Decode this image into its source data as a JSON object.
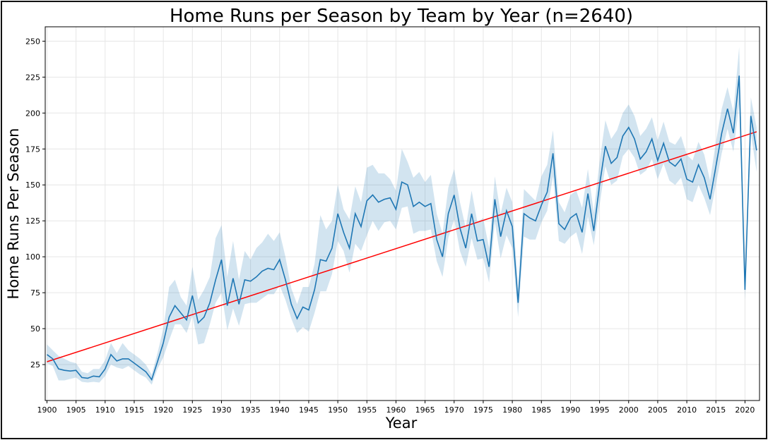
{
  "chart_data": {
    "type": "line",
    "title": "Home Runs per Season by Team by Year (n=2640)",
    "xlabel": "Year",
    "ylabel": "Home Runs Per Season",
    "xlim": [
      1899.7,
      2022.5
    ],
    "ylim": [
      0,
      260
    ],
    "grid": true,
    "x_ticks": [
      1900,
      1905,
      1910,
      1915,
      1920,
      1925,
      1930,
      1935,
      1940,
      1945,
      1950,
      1955,
      1960,
      1965,
      1970,
      1975,
      1980,
      1985,
      1990,
      1995,
      2000,
      2005,
      2010,
      2015,
      2020
    ],
    "y_ticks": [
      25,
      50,
      75,
      100,
      125,
      150,
      175,
      200,
      225,
      250
    ],
    "colors": {
      "series": "#1f77b4",
      "band": "#1f77b4",
      "trend": "#ff0000"
    },
    "series": [
      {
        "type": "line",
        "x": [
          1900,
          1901,
          1902,
          1903,
          1904,
          1905,
          1906,
          1907,
          1908,
          1909,
          1910,
          1911,
          1912,
          1913,
          1914,
          1915,
          1916,
          1917,
          1918,
          1919,
          1920,
          1921,
          1922,
          1923,
          1924,
          1925,
          1926,
          1927,
          1928,
          1929,
          1930,
          1931,
          1932,
          1933,
          1934,
          1935,
          1936,
          1937,
          1938,
          1939,
          1940,
          1941,
          1942,
          1943,
          1944,
          1945,
          1946,
          1947,
          1948,
          1949,
          1950,
          1951,
          1952,
          1953,
          1954,
          1955,
          1956,
          1957,
          1958,
          1959,
          1960,
          1961,
          1962,
          1963,
          1964,
          1965,
          1966,
          1967,
          1968,
          1969,
          1970,
          1971,
          1972,
          1973,
          1974,
          1975,
          1976,
          1977,
          1978,
          1979,
          1980,
          1981,
          1982,
          1983,
          1984,
          1985,
          1986,
          1987,
          1988,
          1989,
          1990,
          1991,
          1992,
          1993,
          1994,
          1995,
          1996,
          1997,
          1998,
          1999,
          2000,
          2001,
          2002,
          2003,
          2004,
          2005,
          2006,
          2007,
          2008,
          2009,
          2010,
          2011,
          2012,
          2013,
          2014,
          2015,
          2016,
          2017,
          2018,
          2019,
          2020,
          2021,
          2022
        ],
        "y": [
          32,
          29,
          22,
          21,
          20.5,
          21,
          16,
          15.5,
          17,
          16.5,
          22,
          32,
          27.5,
          29,
          29,
          26,
          23,
          20,
          14.5,
          27,
          40,
          58,
          66,
          61,
          56,
          73,
          54,
          58,
          68,
          84,
          98,
          66,
          85,
          67,
          84,
          83,
          86,
          90,
          92,
          91,
          98,
          84,
          67,
          57,
          65,
          63,
          77,
          98,
          97,
          106,
          130,
          117,
          106,
          130,
          121,
          139,
          143,
          138,
          140,
          141,
          133,
          152,
          150,
          135,
          138,
          135,
          137,
          112,
          100,
          130,
          143,
          120,
          106,
          130,
          111,
          112,
          93,
          140,
          114,
          132,
          121,
          68,
          130,
          127,
          125,
          136,
          145,
          172,
          123,
          119,
          127,
          130,
          117,
          144,
          118,
          150,
          177,
          165,
          169,
          184,
          190,
          182,
          168,
          173,
          182,
          167,
          179,
          166,
          163,
          168,
          154,
          152,
          164,
          155,
          140,
          163,
          186,
          203,
          186,
          226,
          77,
          198,
          174
        ],
        "lower": [
          26,
          24,
          14,
          14,
          15,
          16,
          13,
          12.5,
          13,
          12.5,
          17,
          25,
          23,
          22,
          24,
          21,
          18,
          16,
          11,
          22,
          30,
          42,
          53,
          53,
          47,
          59,
          39,
          40,
          53,
          68,
          75,
          49,
          64,
          52,
          67,
          68,
          68,
          71,
          74,
          74,
          80,
          70,
          57,
          47,
          51,
          48,
          61,
          76,
          76,
          88,
          111,
          104,
          89,
          109,
          104,
          115,
          125,
          118,
          124,
          125,
          119,
          134,
          135,
          116,
          118,
          118,
          119,
          97,
          86,
          113,
          126,
          104,
          93,
          113,
          98,
          99,
          82,
          124,
          99,
          115,
          106,
          58,
          114,
          112,
          112,
          124,
          132,
          156,
          111,
          109,
          114,
          117,
          102,
          128,
          108,
          136,
          163,
          150,
          153,
          170,
          175,
          169,
          157,
          160,
          168,
          154,
          165,
          153,
          150,
          155,
          140,
          138,
          150,
          141,
          129,
          150,
          172,
          189,
          173,
          206,
          70,
          186,
          159
        ],
        "upper": [
          39,
          35,
          31,
          29,
          27,
          26,
          20,
          19,
          22,
          22,
          28,
          40,
          33,
          40,
          35,
          32,
          29,
          25,
          18,
          33,
          50,
          79,
          84,
          72,
          66,
          93,
          70,
          77,
          86,
          113,
          122,
          86,
          111,
          84,
          104,
          98,
          106,
          110,
          116,
          111,
          117,
          100,
          78,
          67,
          79,
          79,
          95,
          129,
          119,
          125,
          150,
          133,
          126,
          149,
          138,
          162,
          164,
          158,
          158,
          154,
          146,
          175,
          166,
          155,
          159,
          152,
          157,
          130,
          116,
          148,
          161,
          138,
          120,
          146,
          124,
          127,
          106,
          156,
          130,
          148,
          138,
          78,
          147,
          143,
          139,
          156,
          164,
          188,
          138,
          131,
          143,
          146,
          134,
          161,
          131,
          166,
          195,
          182,
          188,
          200,
          206,
          198,
          184,
          189,
          197,
          181,
          194,
          180,
          178,
          184,
          171,
          167,
          180,
          171,
          153,
          180,
          203,
          218,
          201,
          246,
          84,
          211,
          190
        ]
      },
      {
        "type": "trend",
        "x": [
          1900,
          2022
        ],
        "y": [
          27,
          187
        ]
      }
    ]
  }
}
